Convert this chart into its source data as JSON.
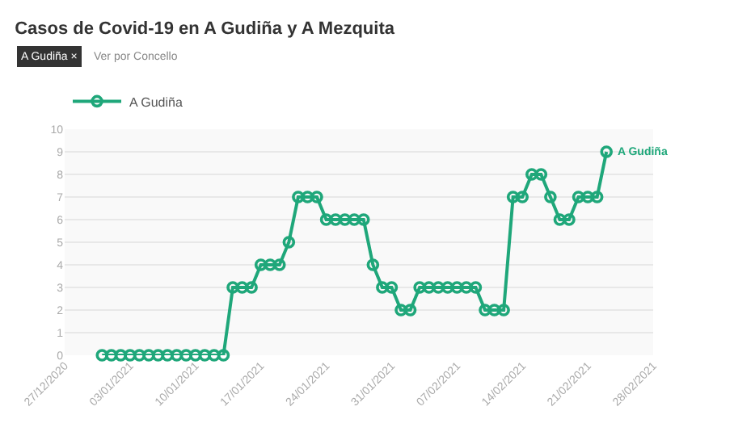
{
  "chart_data": {
    "type": "line",
    "title": "Casos de Covid-19 en A Gudiña y A Mezquita",
    "annotations": [
      "A Gudiña ×",
      "Ver por Concello",
      {
        "text": "A Gudiña",
        "x": "2021-02-23",
        "y": 9
      }
    ],
    "x": [
      "2020-12-31",
      "2021-01-01",
      "2021-01-02",
      "2021-01-03",
      "2021-01-04",
      "2021-01-05",
      "2021-01-06",
      "2021-01-07",
      "2021-01-08",
      "2021-01-09",
      "2021-01-10",
      "2021-01-11",
      "2021-01-12",
      "2021-01-13",
      "2021-01-14",
      "2021-01-15",
      "2021-01-16",
      "2021-01-17",
      "2021-01-18",
      "2021-01-19",
      "2021-01-20",
      "2021-01-21",
      "2021-01-22",
      "2021-01-23",
      "2021-01-24",
      "2021-01-25",
      "2021-01-26",
      "2021-01-27",
      "2021-01-28",
      "2021-01-29",
      "2021-01-30",
      "2021-01-31",
      "2021-02-01",
      "2021-02-02",
      "2021-02-03",
      "2021-02-04",
      "2021-02-05",
      "2021-02-06",
      "2021-02-07",
      "2021-02-08",
      "2021-02-09",
      "2021-02-10",
      "2021-02-11",
      "2021-02-12",
      "2021-02-13",
      "2021-02-14",
      "2021-02-15",
      "2021-02-16",
      "2021-02-17",
      "2021-02-18",
      "2021-02-19",
      "2021-02-20",
      "2021-02-21",
      "2021-02-22",
      "2021-02-23"
    ],
    "series": [
      {
        "name": "A Gudiña",
        "color": "#1fa77a",
        "values": [
          0,
          0,
          0,
          0,
          0,
          0,
          0,
          0,
          0,
          0,
          0,
          0,
          0,
          0,
          3,
          3,
          3,
          4,
          4,
          4,
          5,
          7,
          7,
          7,
          6,
          6,
          6,
          6,
          6,
          4,
          3,
          3,
          2,
          2,
          3,
          3,
          3,
          3,
          3,
          3,
          3,
          2,
          2,
          2,
          7,
          7,
          8,
          8,
          7,
          6,
          6,
          7,
          7,
          7,
          9
        ]
      }
    ],
    "xlim": [
      "2020-12-27",
      "2021-02-28"
    ],
    "xticks": [
      {
        "value": "2020-12-27",
        "label": "27/12/2020"
      },
      {
        "value": "2021-01-03",
        "label": "03/01/2021"
      },
      {
        "value": "2021-01-10",
        "label": "10/01/2021"
      },
      {
        "value": "2021-01-17",
        "label": "17/01/2021"
      },
      {
        "value": "2021-01-24",
        "label": "24/01/2021"
      },
      {
        "value": "2021-01-31",
        "label": "31/01/2021"
      },
      {
        "value": "2021-02-07",
        "label": "07/02/2021"
      },
      {
        "value": "2021-02-14",
        "label": "14/02/2021"
      },
      {
        "value": "2021-02-21",
        "label": "21/02/2021"
      },
      {
        "value": "2021-02-28",
        "label": "28/02/2021"
      }
    ],
    "ylim": [
      0,
      10
    ],
    "yticks": [
      0,
      1,
      2,
      3,
      4,
      5,
      6,
      7,
      8,
      9,
      10
    ],
    "grid": "y",
    "legend": "top left",
    "marker": "circle",
    "line_style": "solid"
  }
}
